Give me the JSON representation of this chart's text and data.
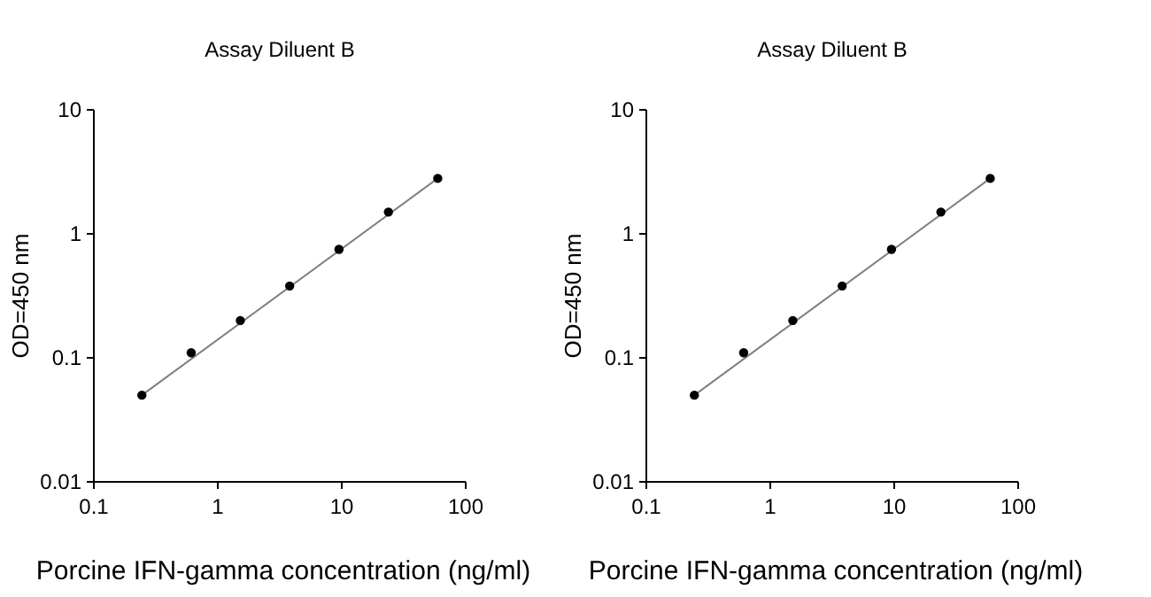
{
  "chart_data": [
    {
      "type": "scatter",
      "title": "Assay Diluent B",
      "xlabel": "Porcine IFN-gamma concentration (ng/ml)",
      "ylabel": "OD=450 nm",
      "log": "xy",
      "xlim": [
        0.1,
        100
      ],
      "ylim": [
        0.01,
        10
      ],
      "xticks": [
        0.1,
        1,
        10,
        100
      ],
      "yticks": [
        0.01,
        0.1,
        1,
        10
      ],
      "grid": false,
      "series": [
        {
          "type": "scatter",
          "marker": "circle",
          "color": "#000000",
          "x": [
            0.244,
            0.61,
            1.52,
            3.8,
            9.5,
            23.8,
            59.5
          ],
          "values": [
            0.05,
            0.11,
            0.2,
            0.38,
            0.75,
            1.5,
            2.8
          ]
        },
        {
          "type": "line",
          "color": "#808080",
          "x": [
            0.244,
            59.5
          ],
          "values": [
            0.05,
            2.8
          ]
        }
      ]
    },
    {
      "type": "scatter",
      "title": "Assay Diluent B",
      "xlabel": "Porcine IFN-gamma concentration (ng/ml)",
      "ylabel": "OD=450 nm",
      "log": "xy",
      "xlim": [
        0.1,
        100
      ],
      "ylim": [
        0.01,
        10
      ],
      "xticks": [
        0.1,
        1,
        10,
        100
      ],
      "yticks": [
        0.01,
        0.1,
        1,
        10
      ],
      "grid": false,
      "series": [
        {
          "type": "scatter",
          "marker": "circle",
          "color": "#000000",
          "x": [
            0.244,
            0.61,
            1.52,
            3.8,
            9.5,
            23.8,
            59.5
          ],
          "values": [
            0.05,
            0.11,
            0.2,
            0.38,
            0.75,
            1.5,
            2.8
          ]
        },
        {
          "type": "line",
          "color": "#808080",
          "x": [
            0.244,
            59.5
          ],
          "values": [
            0.05,
            2.8
          ]
        }
      ]
    }
  ]
}
